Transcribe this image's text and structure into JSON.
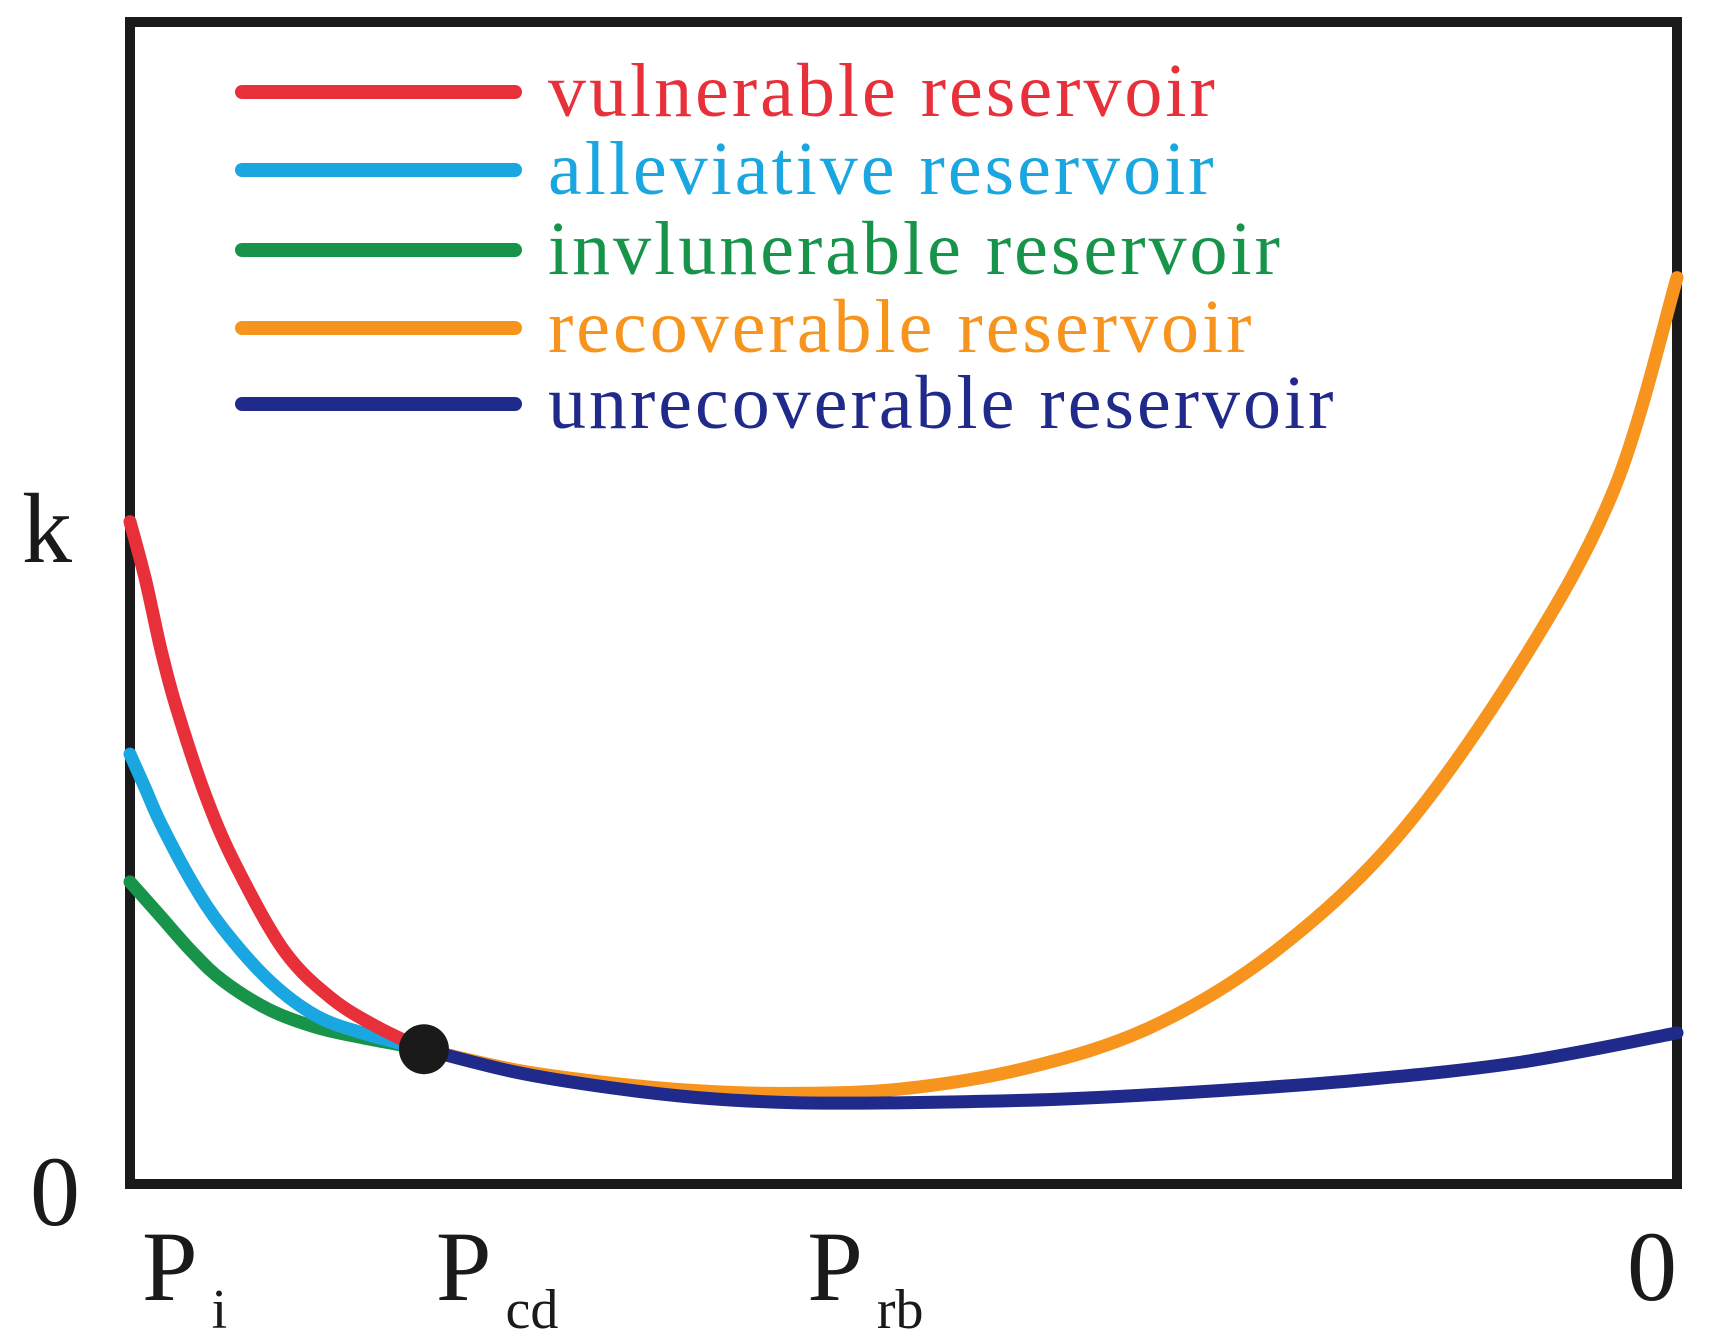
{
  "chart_data": {
    "type": "line",
    "title": "",
    "ylabel": "k",
    "y_origin_label": "0",
    "x_ticks": [
      {
        "main": "P",
        "sub": "i",
        "x": 0
      },
      {
        "main": "P",
        "sub": "cd",
        "x": 0.19
      },
      {
        "main": "P",
        "sub": "rb",
        "x": 0.43
      },
      {
        "main": "0",
        "sub": "",
        "x": 1
      }
    ],
    "xlim": [
      0,
      1
    ],
    "ylim": [
      0,
      1
    ],
    "critical_point": {
      "name": "Pcd",
      "x": 0.19,
      "y": 0.116
    },
    "series": [
      {
        "name": "vulnerable reservoir",
        "color": "#e8303a",
        "x": [
          0,
          0.01,
          0.02,
          0.03,
          0.05,
          0.07,
          0.1,
          0.13,
          0.16,
          0.19
        ],
        "y": [
          0.57,
          0.52,
          0.46,
          0.41,
          0.33,
          0.27,
          0.2,
          0.16,
          0.135,
          0.116
        ]
      },
      {
        "name": "alleviative reservoir",
        "color": "#1aa6e0",
        "x": [
          0,
          0.01,
          0.02,
          0.04,
          0.06,
          0.09,
          0.12,
          0.15,
          0.19
        ],
        "y": [
          0.37,
          0.34,
          0.31,
          0.26,
          0.22,
          0.175,
          0.145,
          0.13,
          0.116
        ]
      },
      {
        "name": "invlunerable reservoir",
        "color": "#17944a",
        "x": [
          0,
          0.02,
          0.04,
          0.06,
          0.09,
          0.12,
          0.15,
          0.19
        ],
        "y": [
          0.26,
          0.23,
          0.2,
          0.175,
          0.15,
          0.135,
          0.126,
          0.116
        ]
      },
      {
        "name": "recoverable reservoir",
        "color": "#f7941d",
        "x": [
          0.19,
          0.25,
          0.31,
          0.37,
          0.43,
          0.5,
          0.58,
          0.66,
          0.74,
          0.82,
          0.9,
          0.96,
          1
        ],
        "y": [
          0.116,
          0.098,
          0.087,
          0.08,
          0.078,
          0.082,
          0.1,
          0.135,
          0.2,
          0.3,
          0.45,
          0.6,
          0.78
        ]
      },
      {
        "name": "unrecoverable reservoir",
        "color": "#1f2a8a",
        "x": [
          0.19,
          0.25,
          0.31,
          0.37,
          0.43,
          0.5,
          0.6,
          0.7,
          0.8,
          0.9,
          1
        ],
        "y": [
          0.116,
          0.096,
          0.083,
          0.074,
          0.07,
          0.07,
          0.073,
          0.08,
          0.09,
          0.105,
          0.13
        ]
      }
    ]
  }
}
